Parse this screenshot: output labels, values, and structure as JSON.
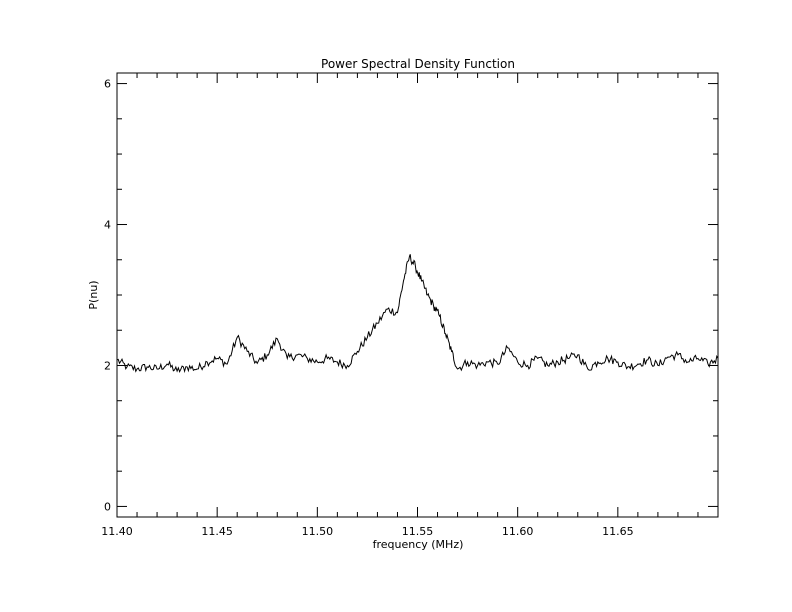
{
  "chart_data": {
    "type": "line",
    "title": "Power Spectral Density Function",
    "xlabel": "frequency (MHz)",
    "ylabel": "P(nu)",
    "xlim": [
      11.4,
      11.7
    ],
    "ylim": [
      -0.15,
      6.15
    ],
    "grid": false,
    "x_ticks": [
      11.4,
      11.45,
      11.5,
      11.55,
      11.6,
      11.65
    ],
    "x_tick_labels": [
      "11.40",
      "11.45",
      "11.50",
      "11.55",
      "11.60",
      "11.65"
    ],
    "y_ticks": [
      0,
      2,
      4,
      6
    ],
    "y_tick_labels": [
      "0",
      "2",
      "4",
      "6"
    ],
    "series": [
      {
        "name": "",
        "color": "#000000",
        "points": [
          [
            11.4,
            2.08
          ],
          [
            11.405,
            1.98
          ],
          [
            11.41,
            1.95
          ],
          [
            11.415,
            1.98
          ],
          [
            11.42,
            1.95
          ],
          [
            11.425,
            2.02
          ],
          [
            11.43,
            1.92
          ],
          [
            11.435,
            1.98
          ],
          [
            11.44,
            1.95
          ],
          [
            11.445,
            2.05
          ],
          [
            11.45,
            2.1
          ],
          [
            11.455,
            2.02
          ],
          [
            11.46,
            2.4
          ],
          [
            11.465,
            2.2
          ],
          [
            11.47,
            2.03
          ],
          [
            11.475,
            2.15
          ],
          [
            11.48,
            2.38
          ],
          [
            11.485,
            2.1
          ],
          [
            11.49,
            2.15
          ],
          [
            11.495,
            2.1
          ],
          [
            11.5,
            2.05
          ],
          [
            11.505,
            2.1
          ],
          [
            11.51,
            2.05
          ],
          [
            11.515,
            2.0
          ],
          [
            11.52,
            2.2
          ],
          [
            11.525,
            2.4
          ],
          [
            11.53,
            2.6
          ],
          [
            11.535,
            2.8
          ],
          [
            11.54,
            2.75
          ],
          [
            11.543,
            3.2
          ],
          [
            11.546,
            3.55
          ],
          [
            11.549,
            3.4
          ],
          [
            11.552,
            3.2
          ],
          [
            11.555,
            3.0
          ],
          [
            11.558,
            2.85
          ],
          [
            11.561,
            2.7
          ],
          [
            11.564,
            2.45
          ],
          [
            11.567,
            2.2
          ],
          [
            11.57,
            1.95
          ],
          [
            11.575,
            2.05
          ],
          [
            11.58,
            2.0
          ],
          [
            11.585,
            2.05
          ],
          [
            11.59,
            2.02
          ],
          [
            11.595,
            2.25
          ],
          [
            11.6,
            2.05
          ],
          [
            11.605,
            2.0
          ],
          [
            11.61,
            2.1
          ],
          [
            11.615,
            2.0
          ],
          [
            11.62,
            2.05
          ],
          [
            11.625,
            2.1
          ],
          [
            11.63,
            2.15
          ],
          [
            11.635,
            1.95
          ],
          [
            11.64,
            2.05
          ],
          [
            11.645,
            2.1
          ],
          [
            11.65,
            2.05
          ],
          [
            11.655,
            1.98
          ],
          [
            11.66,
            2.02
          ],
          [
            11.665,
            2.08
          ],
          [
            11.67,
            2.0
          ],
          [
            11.675,
            2.12
          ],
          [
            11.68,
            2.15
          ],
          [
            11.685,
            2.05
          ],
          [
            11.69,
            2.1
          ],
          [
            11.695,
            2.02
          ],
          [
            11.7,
            2.1
          ]
        ]
      }
    ]
  }
}
